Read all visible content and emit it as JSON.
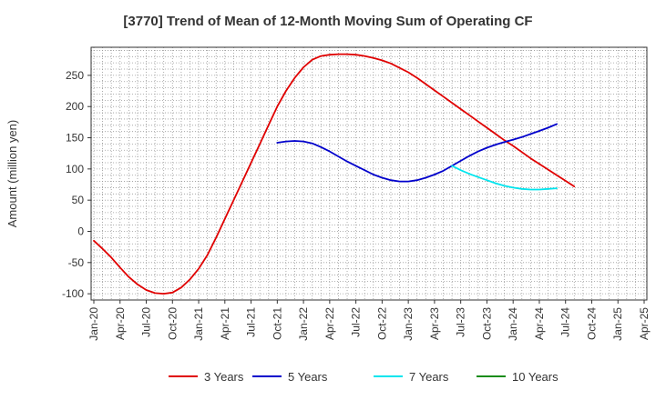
{
  "chart_data": {
    "type": "line",
    "title": "[3770]  Trend of Mean of 12-Month Moving Sum of Operating CF",
    "xlabel": "",
    "ylabel": "Amount (million yen)",
    "ylim": [
      -110,
      295
    ],
    "yticks": [
      -100,
      -50,
      0,
      50,
      100,
      150,
      200,
      250
    ],
    "x_ticks": [
      "Jan-20",
      "Apr-20",
      "Jul-20",
      "Oct-20",
      "Jan-21",
      "Apr-21",
      "Jul-21",
      "Oct-21",
      "Jan-22",
      "Apr-22",
      "Jul-22",
      "Oct-22",
      "Jan-23",
      "Apr-23",
      "Jul-23",
      "Oct-23",
      "Jan-24",
      "Apr-24",
      "Jul-24",
      "Oct-24",
      "Jan-25",
      "Apr-25"
    ],
    "grid": true,
    "legend_position": "bottom",
    "series": [
      {
        "name": "3 Years",
        "color": "#e00000",
        "points": [
          [
            0,
            -15
          ],
          [
            1,
            -28
          ],
          [
            2,
            -42
          ],
          [
            3,
            -58
          ],
          [
            4,
            -73
          ],
          [
            5,
            -85
          ],
          [
            6,
            -94
          ],
          [
            7,
            -99
          ],
          [
            8,
            -100
          ],
          [
            9,
            -98
          ],
          [
            10,
            -90
          ],
          [
            11,
            -77
          ],
          [
            12,
            -60
          ],
          [
            13,
            -38
          ],
          [
            14,
            -10
          ],
          [
            15,
            20
          ],
          [
            16,
            50
          ],
          [
            17,
            80
          ],
          [
            18,
            110
          ],
          [
            19,
            140
          ],
          [
            20,
            170
          ],
          [
            21,
            200
          ],
          [
            22,
            225
          ],
          [
            23,
            246
          ],
          [
            24,
            263
          ],
          [
            25,
            275
          ],
          [
            26,
            281
          ],
          [
            27,
            283
          ],
          [
            28,
            284
          ],
          [
            29,
            284
          ],
          [
            30,
            283
          ],
          [
            31,
            281
          ],
          [
            32,
            278
          ],
          [
            33,
            274
          ],
          [
            34,
            269
          ],
          [
            35,
            262
          ],
          [
            36,
            255
          ],
          [
            37,
            246
          ],
          [
            38,
            236
          ],
          [
            39,
            226
          ],
          [
            40,
            216
          ],
          [
            41,
            206
          ],
          [
            42,
            196
          ],
          [
            43,
            186
          ],
          [
            44,
            176
          ],
          [
            45,
            166
          ],
          [
            46,
            156
          ],
          [
            47,
            146
          ],
          [
            48,
            137
          ],
          [
            49,
            127
          ],
          [
            50,
            117
          ],
          [
            51,
            108
          ],
          [
            52,
            99
          ],
          [
            53,
            90
          ],
          [
            54,
            81
          ],
          [
            55,
            72
          ]
        ]
      },
      {
        "name": "5 Years",
        "color": "#0000cc",
        "points": [
          [
            21,
            142
          ],
          [
            22,
            144
          ],
          [
            23,
            145
          ],
          [
            24,
            144
          ],
          [
            25,
            141
          ],
          [
            26,
            135
          ],
          [
            27,
            128
          ],
          [
            28,
            120
          ],
          [
            29,
            112
          ],
          [
            30,
            105
          ],
          [
            31,
            98
          ],
          [
            32,
            91
          ],
          [
            33,
            86
          ],
          [
            34,
            82
          ],
          [
            35,
            80
          ],
          [
            36,
            80
          ],
          [
            37,
            82
          ],
          [
            38,
            86
          ],
          [
            39,
            91
          ],
          [
            40,
            97
          ],
          [
            41,
            105
          ],
          [
            42,
            113
          ],
          [
            43,
            121
          ],
          [
            44,
            128
          ],
          [
            45,
            134
          ],
          [
            46,
            139
          ],
          [
            47,
            143
          ],
          [
            48,
            147
          ],
          [
            49,
            151
          ],
          [
            50,
            156
          ],
          [
            51,
            161
          ],
          [
            52,
            166
          ],
          [
            53,
            172
          ]
        ]
      },
      {
        "name": "7 Years",
        "color": "#00e5ee",
        "points": [
          [
            41,
            105
          ],
          [
            42,
            98
          ],
          [
            43,
            92
          ],
          [
            44,
            87
          ],
          [
            45,
            82
          ],
          [
            46,
            77
          ],
          [
            47,
            73
          ],
          [
            48,
            70
          ],
          [
            49,
            68
          ],
          [
            50,
            67
          ],
          [
            51,
            67
          ],
          [
            52,
            68
          ],
          [
            53,
            69
          ]
        ]
      },
      {
        "name": "10 Years",
        "color": "#1a8c1a",
        "points": []
      }
    ]
  }
}
